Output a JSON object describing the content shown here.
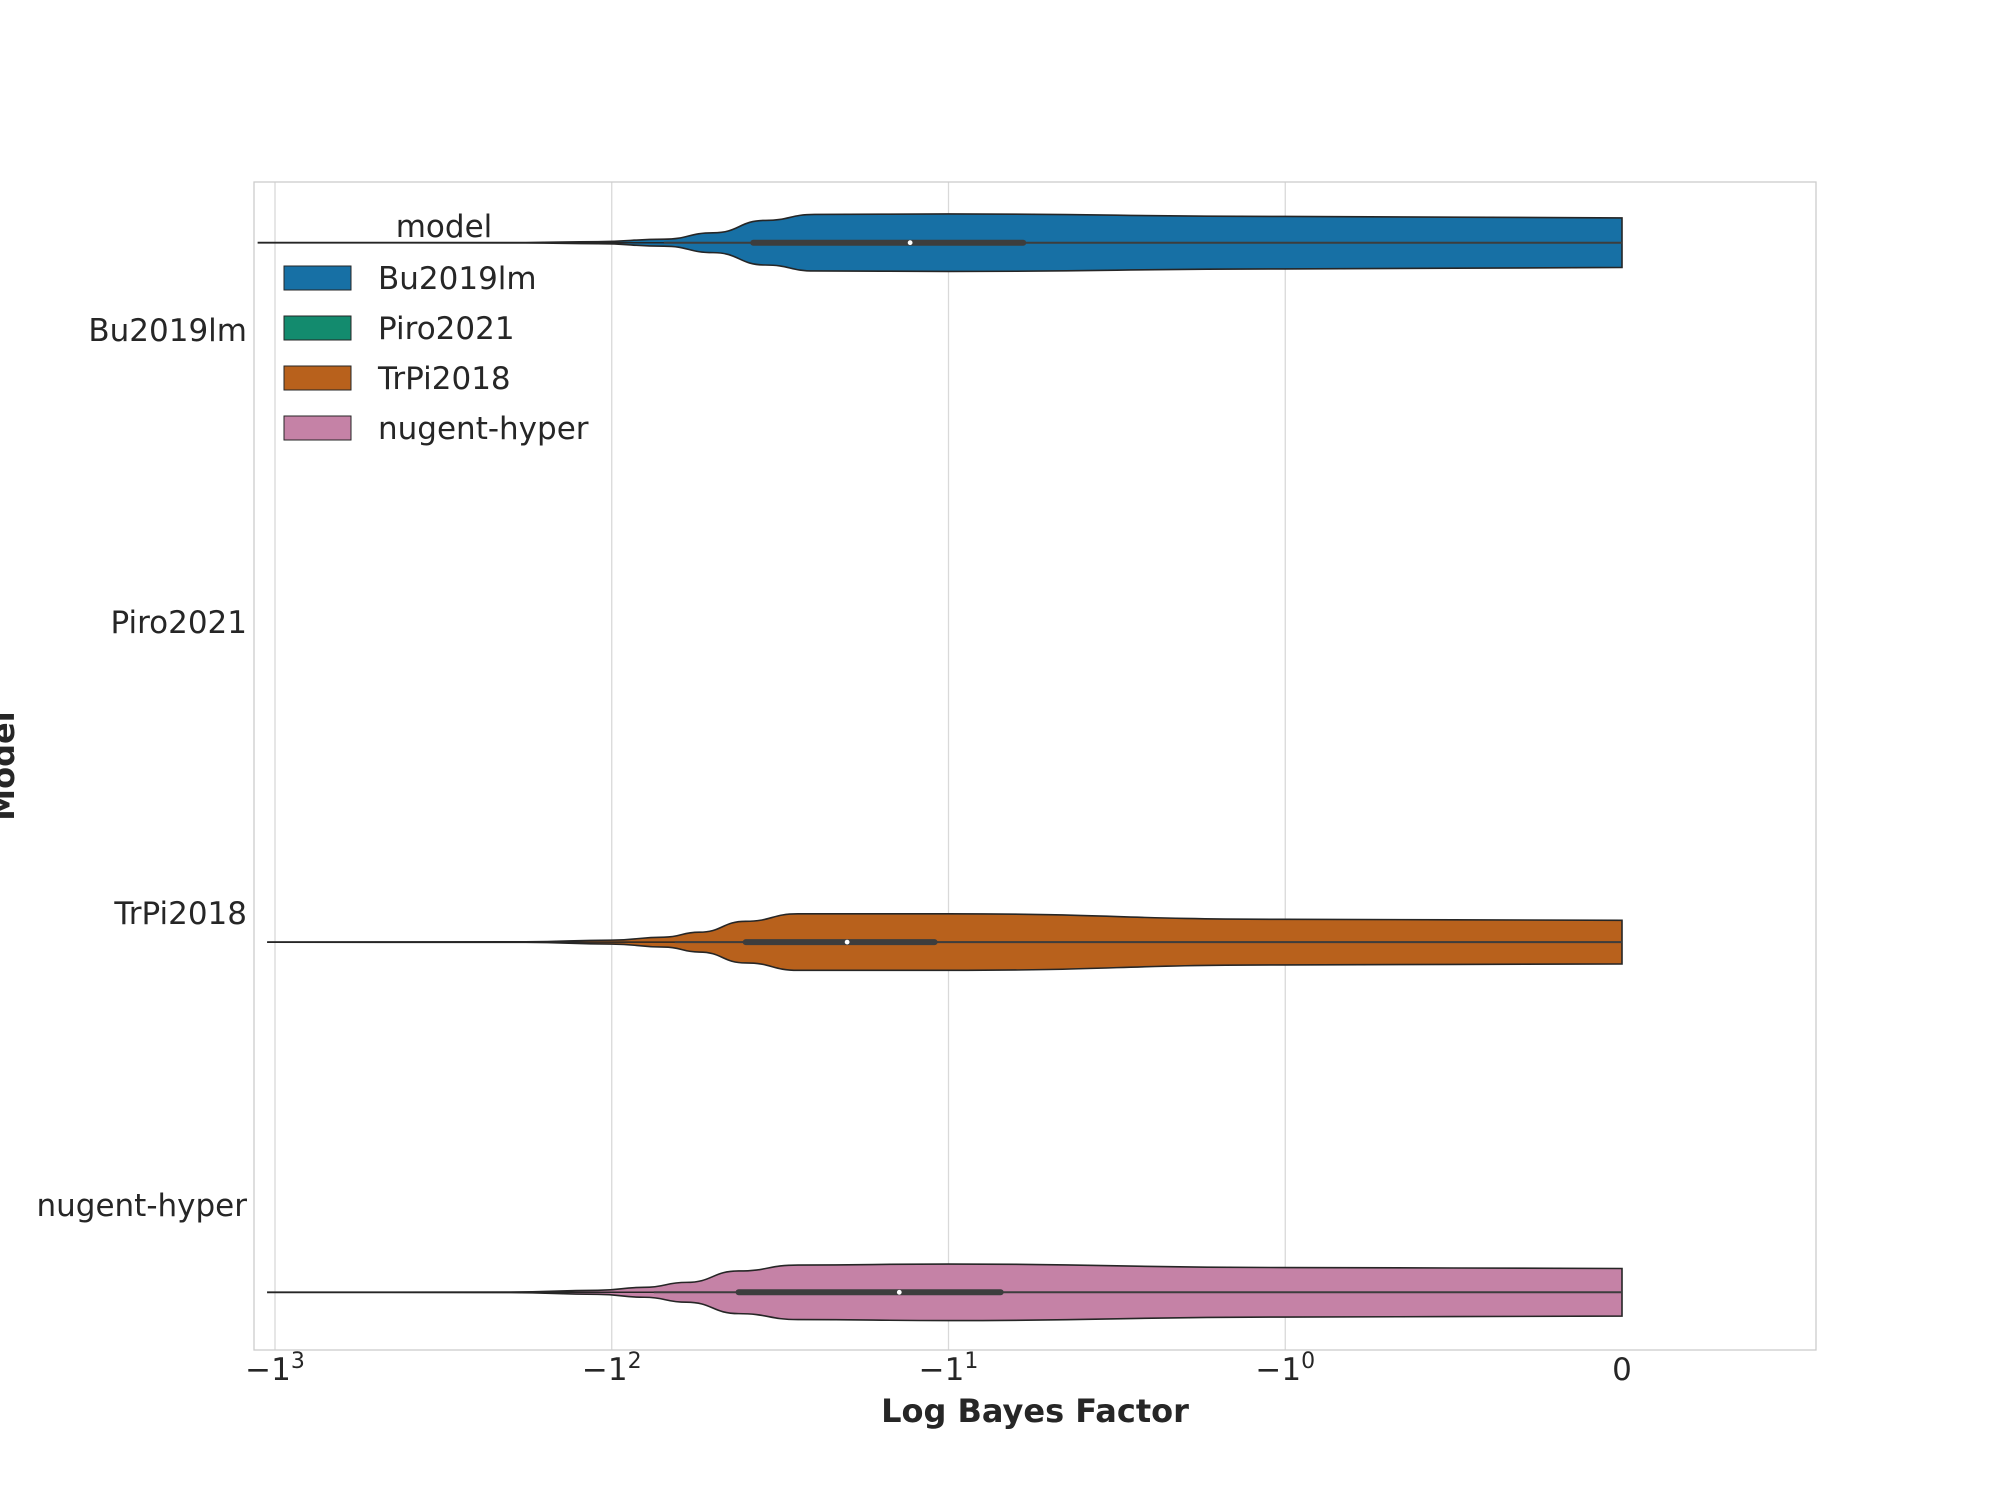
{
  "chart_data": {
    "type": "violin",
    "orientation": "horizontal",
    "x_scale": "symlog",
    "xlabel": "Log Bayes Factor",
    "ylabel": "Model",
    "xticks": [
      {
        "value": -1000,
        "base": "−1",
        "exp": "3"
      },
      {
        "value": -100,
        "base": "−1",
        "exp": "2"
      },
      {
        "value": -10,
        "base": "−1",
        "exp": "1"
      },
      {
        "value": -1,
        "base": "−1",
        "exp": "0"
      },
      {
        "value": 0,
        "base": "0",
        "exp": ""
      }
    ],
    "categories": [
      "Bu2019lm",
      "Piro2021",
      "TrPi2018",
      "nugent-hyper"
    ],
    "legend": {
      "title": "model",
      "entries": [
        {
          "label": "Bu2019lm",
          "color": "#1770A5"
        },
        {
          "label": "Piro2021",
          "color": "#138B6E"
        },
        {
          "label": "TrPi2018",
          "color": "#B8611C"
        },
        {
          "label": "nugent-hyper",
          "color": "#C582A6"
        }
      ]
    },
    "series": [
      {
        "name": "Bu2019lm",
        "color": "#1770A5",
        "row": 0,
        "offset": -0.3,
        "min": -1120,
        "max": 0,
        "q1": -38,
        "median": -13,
        "q3": -6,
        "whisker_low": -70,
        "whisker_high": 0,
        "density": [
          [
            -1120,
            0.002
          ],
          [
            -180,
            0.004
          ],
          [
            -110,
            0.02
          ],
          [
            -70,
            0.07
          ],
          [
            -50,
            0.2
          ],
          [
            -35,
            0.45
          ],
          [
            -25,
            0.57
          ],
          [
            -10,
            0.58
          ],
          [
            -1,
            0.53
          ],
          [
            0,
            0.5
          ]
        ]
      },
      {
        "name": "Piro2021",
        "color": "#138B6E",
        "row": 1,
        "offset": 0,
        "empty": true
      },
      {
        "name": "TrPi2018",
        "color": "#B8611C",
        "row": 2,
        "offset": 0.1,
        "min": -1050,
        "max": 0,
        "q1": -40,
        "median": -20,
        "q3": -11,
        "whisker_low": -65,
        "whisker_high": 0,
        "density": [
          [
            -1050,
            0.002
          ],
          [
            -180,
            0.005
          ],
          [
            -100,
            0.04
          ],
          [
            -70,
            0.1
          ],
          [
            -55,
            0.2
          ],
          [
            -40,
            0.42
          ],
          [
            -28,
            0.57
          ],
          [
            -10,
            0.57
          ],
          [
            -1,
            0.46
          ],
          [
            0,
            0.44
          ]
        ]
      },
      {
        "name": "nugent-hyper",
        "color": "#C582A6",
        "row": 3,
        "offset": 0.3,
        "min": -1050,
        "max": 0,
        "q1": -42,
        "median": -14,
        "q3": -7,
        "whisker_low": -75,
        "whisker_high": 0,
        "density": [
          [
            -1050,
            0.002
          ],
          [
            -200,
            0.005
          ],
          [
            -110,
            0.04
          ],
          [
            -80,
            0.1
          ],
          [
            -60,
            0.2
          ],
          [
            -42,
            0.43
          ],
          [
            -28,
            0.55
          ],
          [
            -10,
            0.57
          ],
          [
            -1,
            0.5
          ],
          [
            0,
            0.48
          ]
        ]
      }
    ]
  }
}
